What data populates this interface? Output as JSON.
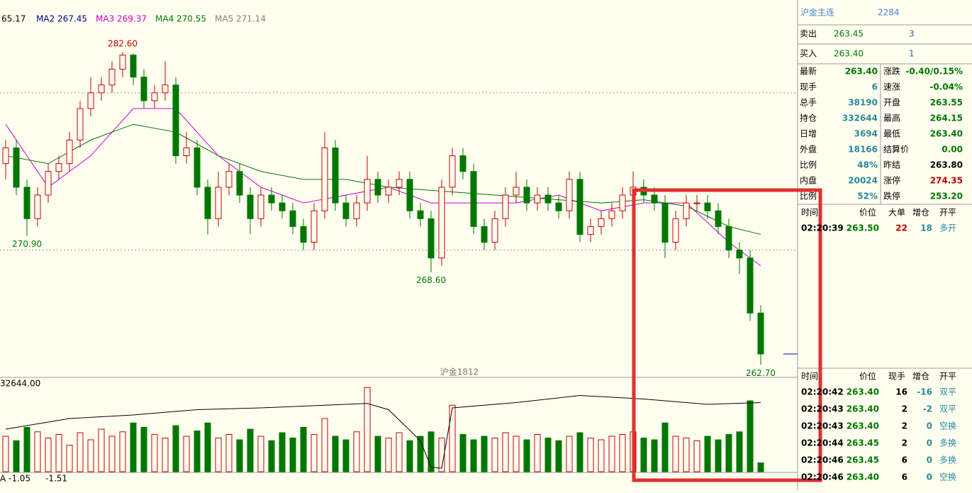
{
  "chart_data": {
    "type": "candlestick",
    "ylim": [
      262,
      285
    ],
    "grid_lines": [
      270,
      280
    ],
    "ma_legend": [
      {
        "label": "65.17",
        "color": "#000000"
      },
      {
        "label": "MA2 267.45",
        "color": "#00008b"
      },
      {
        "label": "MA3 269.37",
        "color": "#cc00cc"
      },
      {
        "label": "MA4 270.55",
        "color": "#007700"
      },
      {
        "label": "MA5 271.14",
        "color": "#808080"
      }
    ],
    "annotations": [
      {
        "value": 282.6,
        "label": "282.60",
        "color": "#c00000"
      },
      {
        "value": 270.9,
        "label": "270.90",
        "color": "#007700"
      },
      {
        "value": 268.6,
        "label": "268.60",
        "color": "#007700"
      },
      {
        "value": 262.7,
        "label": "262.70",
        "color": "#007700"
      }
    ],
    "contract_label": "沪金1812",
    "up_color": "#c00000",
    "down_color": "#007700",
    "candles": [
      [
        275.5,
        277,
        274.5,
        276.5
      ],
      [
        276.5,
        277,
        273.5,
        274
      ],
      [
        274,
        274.5,
        270.9,
        272
      ],
      [
        272,
        274,
        271.5,
        273.5
      ],
      [
        273.5,
        275.5,
        273,
        275
      ],
      [
        275,
        276,
        274.5,
        275.5
      ],
      [
        275.5,
        277.5,
        275,
        277
      ],
      [
        277,
        279.5,
        276.5,
        279
      ],
      [
        279,
        281,
        278.5,
        280
      ],
      [
        280,
        281,
        279.5,
        280.5
      ],
      [
        280.5,
        282,
        280,
        281.5
      ],
      [
        281.5,
        282.6,
        281,
        282.4
      ],
      [
        282.4,
        282.5,
        280.5,
        281
      ],
      [
        281,
        281.5,
        279,
        279.5
      ],
      [
        279.5,
        280.5,
        279,
        280
      ],
      [
        280,
        282,
        279.5,
        280.5
      ],
      [
        280.5,
        281,
        275.5,
        276
      ],
      [
        276,
        277.5,
        275.5,
        276.5
      ],
      [
        276.5,
        277,
        273.5,
        274
      ],
      [
        274,
        274.5,
        271,
        272
      ],
      [
        272,
        275,
        271.5,
        274
      ],
      [
        274,
        275.5,
        273.5,
        275
      ],
      [
        275,
        275.5,
        273,
        273.5
      ],
      [
        273.5,
        274,
        271,
        272
      ],
      [
        272,
        274,
        271.5,
        273.5
      ],
      [
        273.5,
        274,
        272.5,
        273
      ],
      [
        273,
        273.5,
        272,
        272.5
      ],
      [
        272.5,
        273,
        271,
        271.5
      ],
      [
        271.5,
        272,
        270,
        270.5
      ],
      [
        270.5,
        273,
        270,
        272.5
      ],
      [
        272.5,
        277.5,
        272,
        276.5
      ],
      [
        276.5,
        277,
        272.5,
        273
      ],
      [
        273,
        273.5,
        271.5,
        272
      ],
      [
        272,
        273.5,
        271.5,
        273
      ],
      [
        273,
        276,
        272.5,
        274.5
      ],
      [
        274.5,
        275,
        273,
        273.5
      ],
      [
        273.5,
        274.5,
        273,
        274
      ],
      [
        274,
        275,
        273.5,
        274.5
      ],
      [
        274.5,
        275,
        272,
        272.5
      ],
      [
        272.5,
        273,
        271.5,
        272
      ],
      [
        272,
        272.5,
        268.6,
        269.5
      ],
      [
        269.5,
        274.5,
        269,
        274
      ],
      [
        274,
        276.5,
        273.5,
        276
      ],
      [
        276,
        276.5,
        274.5,
        275
      ],
      [
        275,
        275.5,
        271,
        271.5
      ],
      [
        271.5,
        272,
        270,
        270.5
      ],
      [
        270.5,
        272.5,
        270,
        272
      ],
      [
        272,
        274,
        271.5,
        273.5
      ],
      [
        273.5,
        275,
        273,
        274
      ],
      [
        274,
        274.5,
        272.5,
        273
      ],
      [
        273,
        274,
        272.5,
        273.5
      ],
      [
        273.5,
        274,
        272.5,
        273
      ],
      [
        273,
        273.5,
        272,
        272.5
      ],
      [
        272.5,
        275,
        272,
        274.5
      ],
      [
        274.5,
        275,
        270.5,
        271
      ],
      [
        271,
        272,
        270.5,
        271.5
      ],
      [
        271.5,
        272.5,
        271,
        272
      ],
      [
        272,
        273,
        271.5,
        272.5
      ],
      [
        272.5,
        274,
        272,
        273.5
      ],
      [
        273.5,
        275,
        273,
        274
      ],
      [
        274,
        274.5,
        273,
        273.5
      ],
      [
        273.5,
        274,
        272.5,
        273
      ],
      [
        273,
        273.5,
        269.5,
        270.5
      ],
      [
        270.5,
        272.5,
        270,
        272
      ],
      [
        272,
        273.5,
        271.5,
        273
      ],
      [
        273,
        273.5,
        272.5,
        273
      ],
      [
        273,
        273.5,
        272,
        272.5
      ],
      [
        272.5,
        273,
        271,
        271.5
      ],
      [
        271.5,
        272,
        269.5,
        270
      ],
      [
        270,
        270.5,
        268.5,
        269.5
      ],
      [
        269.5,
        270,
        265.5,
        266
      ],
      [
        266,
        266.5,
        262.7,
        263.4
      ]
    ],
    "ma_series": [
      {
        "name": "MA3",
        "color": "#cc00cc",
        "x": [
          0,
          4,
          8,
          12,
          16,
          20,
          24,
          28,
          32,
          36,
          40,
          44,
          48,
          52,
          56,
          60,
          64,
          68,
          71
        ],
        "values": [
          278,
          274,
          276,
          279,
          279,
          276,
          274,
          273,
          273.5,
          274,
          273,
          273,
          273,
          273.5,
          272.5,
          273,
          273,
          270.5,
          269
        ]
      },
      {
        "name": "MA4",
        "color": "#007700",
        "x": [
          0,
          4,
          8,
          12,
          16,
          20,
          24,
          28,
          32,
          36,
          40,
          44,
          48,
          52,
          56,
          60,
          64,
          68,
          71
        ],
        "values": [
          276,
          275.5,
          277,
          278,
          277.5,
          276,
          275,
          274.5,
          274.5,
          274,
          273.8,
          273.6,
          273.4,
          273.2,
          273,
          273.2,
          272.8,
          271.5,
          271
        ]
      }
    ],
    "volume_ylim": [
      0,
      100
    ],
    "volume_label": "32644.00",
    "volumes": [
      40,
      35,
      50,
      45,
      38,
      42,
      30,
      44,
      36,
      48,
      40,
      45,
      55,
      50,
      42,
      38,
      52,
      40,
      46,
      55,
      38,
      42,
      36,
      48,
      40,
      35,
      44,
      38,
      50,
      42,
      60,
      40,
      36,
      45,
      95,
      40,
      38,
      44,
      35,
      40,
      45,
      38,
      75,
      42,
      36,
      40,
      38,
      44,
      40,
      36,
      42,
      38,
      35,
      40,
      44,
      38,
      36,
      40,
      42,
      45,
      38,
      36,
      55,
      40,
      38,
      35,
      40,
      36,
      42,
      45,
      80,
      10
    ],
    "oi_x": [
      0,
      6,
      12,
      18,
      24,
      30,
      34,
      36,
      39,
      40,
      41,
      42,
      48,
      54,
      60,
      66,
      71
    ],
    "oi_values": [
      48,
      60,
      64,
      70,
      72,
      75,
      77,
      70,
      35,
      5,
      4,
      72,
      78,
      86,
      82,
      76,
      78
    ],
    "bottom_labels": [
      "A -1.05",
      "-1.51"
    ],
    "highlight_color": "#e03030"
  },
  "quote": {
    "name": "沪金主连",
    "code": "2284",
    "sell": {
      "label": "卖出",
      "price": "263.45",
      "qty": "3"
    },
    "buy": {
      "label": "买入",
      "price": "263.40",
      "qty": "1"
    },
    "rows": [
      [
        {
          "label": "最新",
          "value": "263.40",
          "color": "#007700"
        },
        {
          "label": "涨跌",
          "value": "-0.40/0.15%",
          "color": "#007700"
        }
      ],
      [
        {
          "label": "现手",
          "value": "6",
          "color": "#2a8a9a"
        },
        {
          "label": "速涨",
          "value": "-0.04%",
          "color": "#007700"
        }
      ],
      [
        {
          "label": "总手",
          "value": "38190",
          "color": "#2a8a9a"
        },
        {
          "label": "开盘",
          "value": "263.55",
          "color": "#007700"
        }
      ],
      [
        {
          "label": "持仓",
          "value": "332644",
          "color": "#2a8a9a"
        },
        {
          "label": "最高",
          "value": "264.15",
          "color": "#007700"
        }
      ],
      [
        {
          "label": "日增",
          "value": "3694",
          "color": "#2a8a9a"
        },
        {
          "label": "最低",
          "value": "263.40",
          "color": "#007700"
        }
      ],
      [
        {
          "label": "外盘",
          "value": "18166",
          "color": "#2a8a9a"
        },
        {
          "label": "结算价",
          "value": "0.00",
          "color": "#007700"
        }
      ],
      [
        {
          "label": "比例",
          "value": "48%",
          "color": "#2a8a9a"
        },
        {
          "label": "昨结",
          "value": "263.80",
          "color": "#000000"
        }
      ],
      [
        {
          "label": "内盘",
          "value": "20024",
          "color": "#2a8a9a"
        },
        {
          "label": "涨停",
          "value": "274.35",
          "color": "#c00000"
        }
      ],
      [
        {
          "label": "比例",
          "value": "52%",
          "color": "#2a8a9a"
        },
        {
          "label": "跌停",
          "value": "253.20",
          "color": "#007700"
        }
      ]
    ],
    "big_ticks": {
      "header": [
        "时间",
        "价位",
        "大单",
        "增仓",
        "开平"
      ],
      "rows": [
        [
          "02:20:39",
          "263.50",
          "22",
          "18",
          "多开"
        ]
      ]
    },
    "ticks": {
      "header": [
        "时间",
        "价位",
        "现手",
        "增仓",
        "开平"
      ],
      "rows": [
        [
          "02:20:42",
          "263.40",
          "16",
          "-16",
          "双平"
        ],
        [
          "02:20:43",
          "263.40",
          "2",
          "-2",
          "双平"
        ],
        [
          "02:20:43",
          "263.40",
          "2",
          "0",
          "空换"
        ],
        [
          "02:20:44",
          "263.45",
          "2",
          "0",
          "多换"
        ],
        [
          "02:20:46",
          "263.45",
          "6",
          "0",
          "多换"
        ],
        [
          "02:20:46",
          "263.40",
          "6",
          "0",
          "空换"
        ]
      ]
    }
  }
}
